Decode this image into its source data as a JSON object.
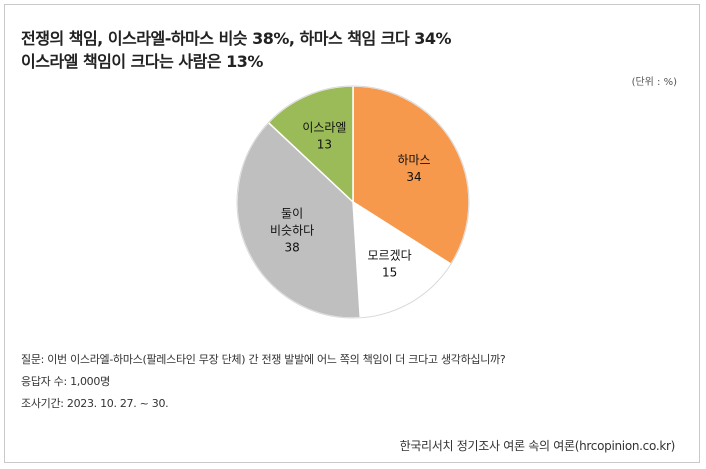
{
  "title_line1": "전쟁의 책임, 이스라엘-하마스 비슷 38%, 하마스 책임 크다 34%",
  "title_line2": "이스라엘 책임이 크다는 사람은 13%",
  "unit": "(단위 : %)",
  "notes": {
    "question": "질문: 이번 이스라엘-하마스(팔레스타인 무장 단체) 간 전쟁 발발에 어느 쪽의 책임이 더 크다고 생각하십니까?",
    "respondents": "응답자 수: 1,000명",
    "period": "조사기간: 2023. 10. 27. ~ 30."
  },
  "source": "한국리서치 정기조사 여론 속의 여론(hrcopinion.co.kr)",
  "chart_data": {
    "type": "pie",
    "title": "전쟁의 책임, 이스라엘-하마스 비슷 38%, 하마스 책임 크다 34% 이스라엘 책임이 크다는 사람은 13%",
    "unit": "%",
    "slices": [
      {
        "label": "하마스",
        "value": 34,
        "color": "#f7994d"
      },
      {
        "label": "모르겠다",
        "value": 15,
        "color": "#ffffff"
      },
      {
        "label": "둘이\n비슷하다",
        "value": 38,
        "color": "#bfbfbf"
      },
      {
        "label": "이스라엘",
        "value": 13,
        "color": "#9bbb59"
      }
    ]
  }
}
